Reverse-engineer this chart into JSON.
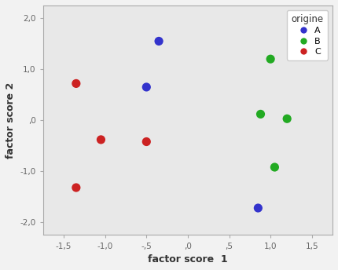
{
  "points": {
    "A": {
      "x": [
        -0.35,
        -0.5,
        0.85
      ],
      "y": [
        1.55,
        0.65,
        -1.72
      ],
      "color": "#3333cc"
    },
    "B": {
      "x": [
        1.0,
        0.88,
        1.2,
        1.05
      ],
      "y": [
        1.2,
        0.12,
        0.03,
        -0.92
      ],
      "color": "#22aa22"
    },
    "C": {
      "x": [
        -1.35,
        -1.05,
        -0.5,
        -1.35
      ],
      "y": [
        0.72,
        -0.38,
        -0.42,
        -1.32
      ],
      "color": "#cc2222"
    }
  },
  "xlabel": "factor score  1",
  "ylabel": "factor score 2",
  "legend_title": "origine",
  "xlim": [
    -1.75,
    1.75
  ],
  "ylim": [
    -2.25,
    2.25
  ],
  "xticks": [
    -1.5,
    -1.0,
    -0.5,
    0.0,
    0.5,
    1.0,
    1.5
  ],
  "yticks": [
    -2.0,
    -1.0,
    0.0,
    1.0,
    2.0
  ],
  "xtick_labels": [
    "-1,5",
    "-1,0",
    "-,5",
    ",0",
    ",5",
    "1,0",
    "1,5"
  ],
  "ytick_labels": [
    "-2,0",
    "-1,0",
    ",0",
    "1,0",
    "2,0"
  ],
  "plot_bg_color": "#e8e8e8",
  "fig_bg_color": "#f2f2f2",
  "marker_size": 65,
  "legend_labels": [
    "A",
    "B",
    "C"
  ],
  "legend_colors": [
    "#3333cc",
    "#22aa22",
    "#cc2222"
  ],
  "spine_color": "#aaaaaa",
  "tick_color": "#666666",
  "label_color": "#333333"
}
